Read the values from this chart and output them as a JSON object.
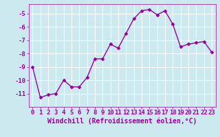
{
  "x": [
    0,
    1,
    2,
    3,
    4,
    5,
    6,
    7,
    8,
    9,
    10,
    11,
    12,
    13,
    14,
    15,
    16,
    17,
    18,
    19,
    20,
    21,
    22,
    23
  ],
  "y": [
    -9.0,
    -11.3,
    -11.1,
    -11.0,
    -10.0,
    -10.5,
    -10.5,
    -9.8,
    -8.4,
    -8.4,
    -7.3,
    -7.6,
    -6.5,
    -5.4,
    -4.8,
    -4.7,
    -5.1,
    -4.8,
    -5.8,
    -7.5,
    -7.3,
    -7.2,
    -7.1,
    -7.9
  ],
  "line_color": "#990099",
  "marker": "D",
  "markersize": 2.5,
  "linewidth": 1.0,
  "background_color": "#cce9f0",
  "grid_color": "#ffffff",
  "xlabel": "Windchill (Refroidissement éolien,°C)",
  "xlabel_fontsize": 7,
  "tick_fontsize": 6.5,
  "tick_color": "#990099",
  "label_color": "#990099",
  "ylim": [
    -12,
    -4.3
  ],
  "xlim": [
    -0.5,
    23.5
  ],
  "yticks": [
    -11,
    -10,
    -9,
    -8,
    -7,
    -6,
    -5
  ],
  "xticks": [
    0,
    1,
    2,
    3,
    4,
    5,
    6,
    7,
    8,
    9,
    10,
    11,
    12,
    13,
    14,
    15,
    16,
    17,
    18,
    19,
    20,
    21,
    22,
    23
  ]
}
